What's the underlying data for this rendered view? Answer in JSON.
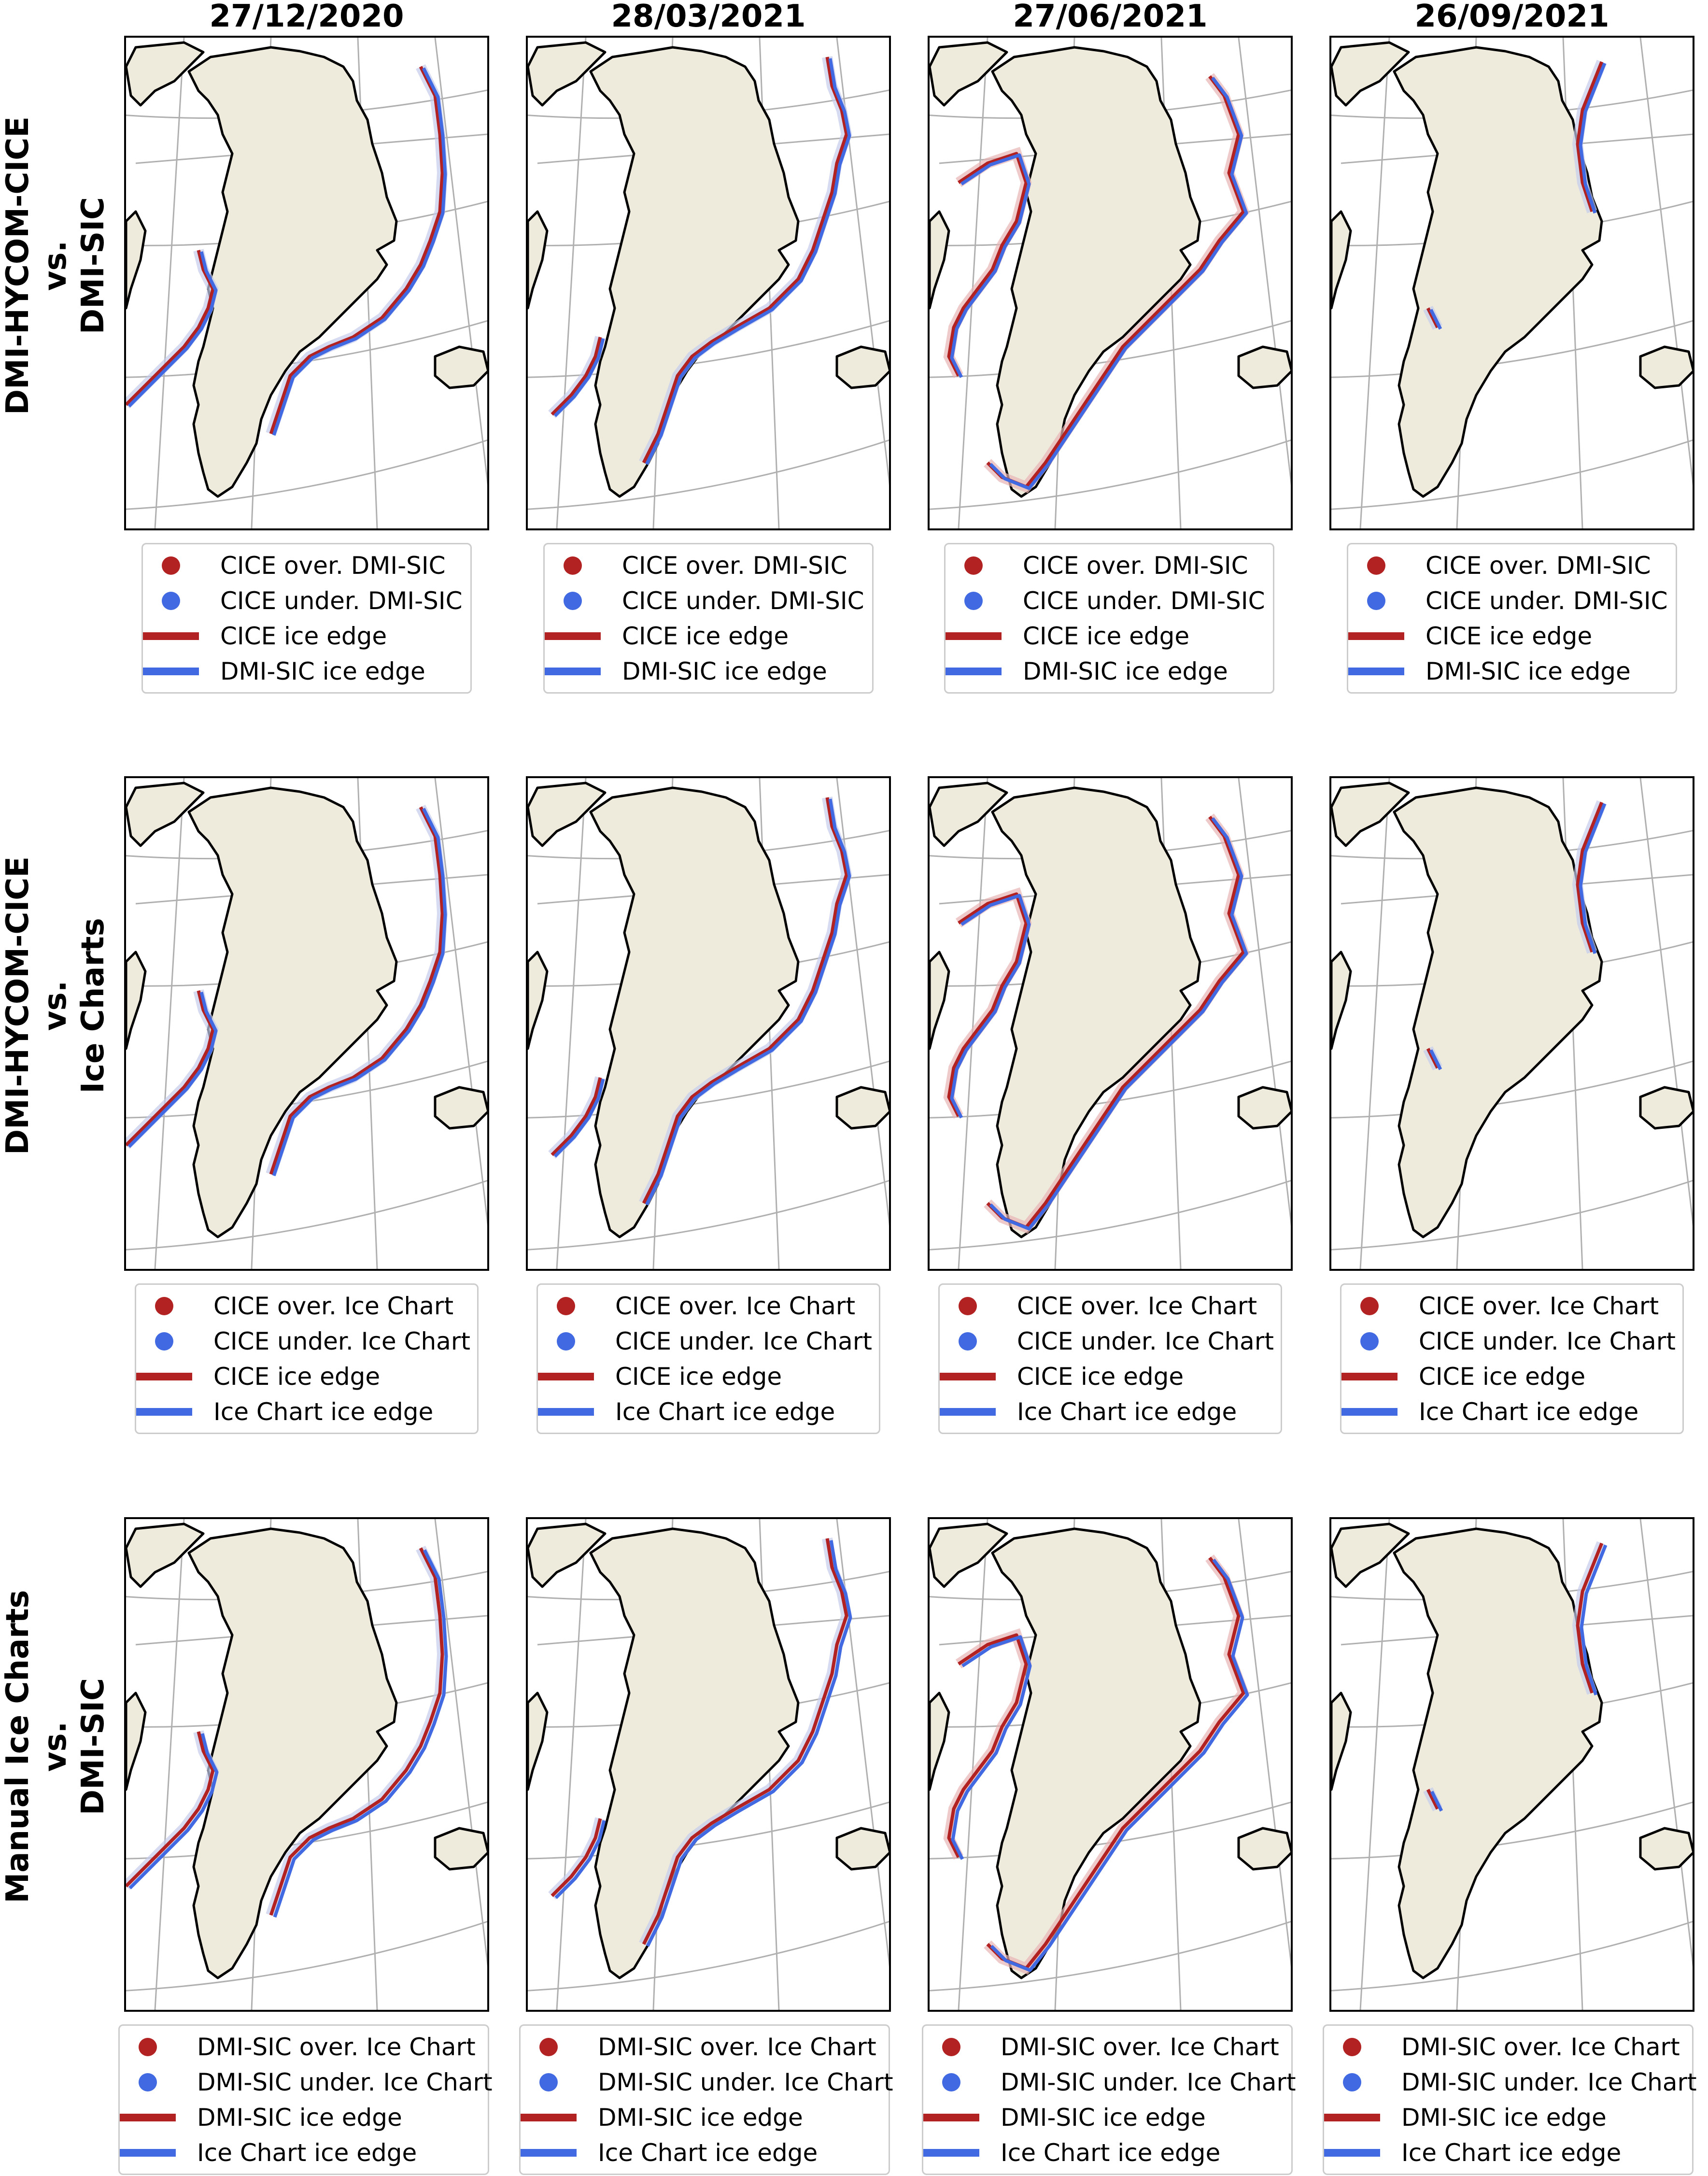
{
  "columns": [
    "27/12/2020",
    "28/03/2021",
    "27/06/2021",
    "26/09/2021"
  ],
  "rows": [
    {
      "title_lines": [
        "DMI-HYCOM-CICE",
        "vs.",
        "DMI-SIC"
      ],
      "legend": [
        "CICE over. DMI-SIC",
        "CICE under. DMI-SIC",
        "CICE ice edge",
        "DMI-SIC ice edge"
      ]
    },
    {
      "title_lines": [
        "DMI-HYCOM-CICE",
        "vs.",
        "Ice Charts"
      ],
      "legend": [
        "CICE over. Ice Chart",
        "CICE under. Ice Chart",
        "CICE ice edge",
        "Ice Chart ice edge"
      ]
    },
    {
      "title_lines": [
        "Manual Ice Charts",
        "vs.",
        "DMI-SIC"
      ],
      "legend": [
        "DMI-SIC over. Ice Chart",
        "DMI-SIC under. Ice Chart",
        "DMI-SIC ice edge",
        "Ice Chart ice edge"
      ]
    }
  ],
  "colors": {
    "over": "#b22222",
    "under": "#4169e1",
    "land": "#efebdc",
    "coast": "#000000",
    "graticule": "#b0b0b0",
    "over_fill": "#e8b4b4",
    "under_fill": "#c4ccec"
  }
}
